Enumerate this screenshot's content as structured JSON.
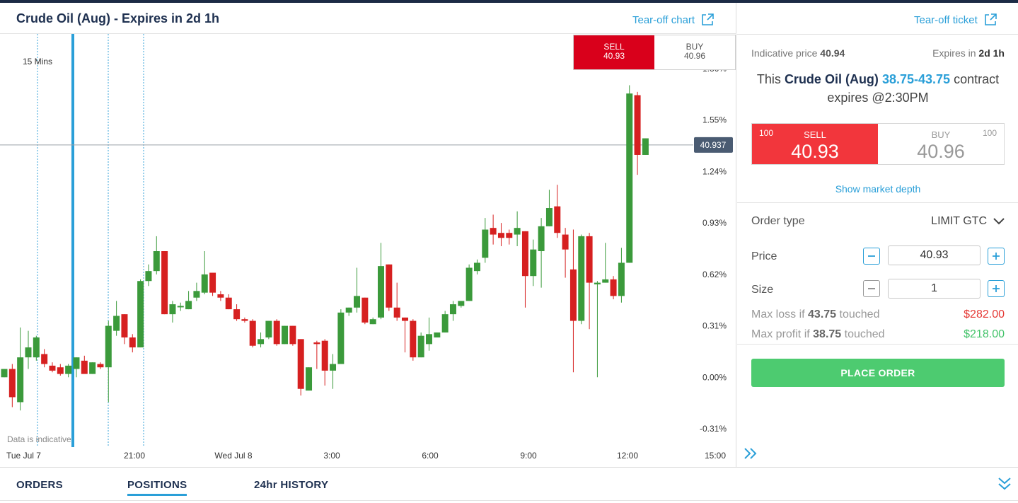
{
  "chart_header": {
    "title": "Crude Oil (Aug) - Expires in 2d 1h",
    "tearoff_chart": "Tear-off chart"
  },
  "mini_ticket": {
    "sell_label": "SELL",
    "sell_price": "40.93",
    "buy_label": "BUY",
    "buy_price": "40.96"
  },
  "chart": {
    "interval": "15 Mins",
    "disclaimer": "Data is indicative",
    "current_price_tag": "40.937"
  },
  "chart_data": {
    "type": "candlestick",
    "y_axis_unit": "%",
    "y_ticks": [
      "1.86%",
      "1.55%",
      "1.24%",
      "0.93%",
      "0.62%",
      "0.31%",
      "0.00%",
      "-0.31%"
    ],
    "y_tick_values": [
      1.86,
      1.55,
      1.24,
      0.93,
      0.62,
      0.31,
      0.0,
      -0.31
    ],
    "x_ticks": [
      "Tue Jul 7",
      "21:00",
      "Wed Jul 8",
      "3:00",
      "6:00",
      "9:00",
      "12:00",
      "15:00"
    ],
    "current_value": 1.4,
    "colors": {
      "up": "#3b9a3b",
      "down": "#d62020"
    },
    "candles": [
      {
        "o": 0.0,
        "h": 0.05,
        "l": 0.0,
        "c": 0.05
      },
      {
        "o": 0.05,
        "h": 0.08,
        "l": -0.18,
        "c": -0.12
      },
      {
        "o": -0.15,
        "h": 0.3,
        "l": -0.2,
        "c": 0.12
      },
      {
        "o": 0.12,
        "h": 0.28,
        "l": 0.05,
        "c": 0.18
      },
      {
        "o": 0.12,
        "h": 0.25,
        "l": 0.1,
        "c": 0.24
      },
      {
        "o": 0.14,
        "h": 0.17,
        "l": 0.06,
        "c": 0.08
      },
      {
        "o": 0.07,
        "h": 0.09,
        "l": 0.03,
        "c": 0.04
      },
      {
        "o": 0.06,
        "h": 0.08,
        "l": 0.01,
        "c": 0.02
      },
      {
        "o": 0.02,
        "h": 0.08,
        "l": 0.0,
        "c": 0.07
      },
      {
        "o": 0.05,
        "h": 0.12,
        "l": 0.0,
        "c": 0.12
      },
      {
        "o": 0.1,
        "h": 0.13,
        "l": 0.03,
        "c": 0.02
      },
      {
        "o": 0.02,
        "h": 0.09,
        "l": 0.02,
        "c": 0.09
      },
      {
        "o": 0.08,
        "h": 0.09,
        "l": 0.05,
        "c": 0.06
      },
      {
        "o": 0.06,
        "h": 0.34,
        "l": -0.15,
        "c": 0.31
      },
      {
        "o": 0.28,
        "h": 0.46,
        "l": 0.25,
        "c": 0.37
      },
      {
        "o": 0.38,
        "h": 0.38,
        "l": 0.2,
        "c": 0.24
      },
      {
        "o": 0.24,
        "h": 0.26,
        "l": 0.15,
        "c": 0.18
      },
      {
        "o": 0.18,
        "h": 0.59,
        "l": 0.18,
        "c": 0.58
      },
      {
        "o": 0.58,
        "h": 0.68,
        "l": 0.55,
        "c": 0.64
      },
      {
        "o": 0.64,
        "h": 0.85,
        "l": 0.62,
        "c": 0.76
      },
      {
        "o": 0.76,
        "h": 0.76,
        "l": 0.38,
        "c": 0.38
      },
      {
        "o": 0.38,
        "h": 0.46,
        "l": 0.33,
        "c": 0.44
      },
      {
        "o": 0.43,
        "h": 0.45,
        "l": 0.4,
        "c": 0.43
      },
      {
        "o": 0.41,
        "h": 0.52,
        "l": 0.41,
        "c": 0.46
      },
      {
        "o": 0.48,
        "h": 0.57,
        "l": 0.46,
        "c": 0.52
      },
      {
        "o": 0.51,
        "h": 0.76,
        "l": 0.5,
        "c": 0.62
      },
      {
        "o": 0.63,
        "h": 0.63,
        "l": 0.49,
        "c": 0.51
      },
      {
        "o": 0.5,
        "h": 0.52,
        "l": 0.46,
        "c": 0.48
      },
      {
        "o": 0.48,
        "h": 0.5,
        "l": 0.41,
        "c": 0.41
      },
      {
        "o": 0.41,
        "h": 0.44,
        "l": 0.34,
        "c": 0.35
      },
      {
        "o": 0.35,
        "h": 0.36,
        "l": 0.33,
        "c": 0.34
      },
      {
        "o": 0.34,
        "h": 0.35,
        "l": 0.18,
        "c": 0.19
      },
      {
        "o": 0.2,
        "h": 0.27,
        "l": 0.18,
        "c": 0.23
      },
      {
        "o": 0.24,
        "h": 0.34,
        "l": 0.23,
        "c": 0.34
      },
      {
        "o": 0.34,
        "h": 0.35,
        "l": 0.19,
        "c": 0.2
      },
      {
        "o": 0.2,
        "h": 0.31,
        "l": 0.2,
        "c": 0.31
      },
      {
        "o": 0.31,
        "h": 0.31,
        "l": 0.19,
        "c": 0.2
      },
      {
        "o": 0.23,
        "h": 0.23,
        "l": -0.11,
        "c": -0.07
      },
      {
        "o": -0.08,
        "h": 0.06,
        "l": -0.08,
        "c": 0.06
      },
      {
        "o": 0.21,
        "h": 0.22,
        "l": 0.05,
        "c": 0.2
      },
      {
        "o": 0.22,
        "h": 0.23,
        "l": -0.05,
        "c": 0.04
      },
      {
        "o": 0.04,
        "h": 0.14,
        "l": -0.07,
        "c": 0.08
      },
      {
        "o": 0.08,
        "h": 0.41,
        "l": 0.08,
        "c": 0.39
      },
      {
        "o": 0.39,
        "h": 0.42,
        "l": 0.37,
        "c": 0.42
      },
      {
        "o": 0.42,
        "h": 0.66,
        "l": 0.39,
        "c": 0.49
      },
      {
        "o": 0.48,
        "h": 0.48,
        "l": 0.32,
        "c": 0.33
      },
      {
        "o": 0.32,
        "h": 0.36,
        "l": 0.32,
        "c": 0.35
      },
      {
        "o": 0.36,
        "h": 0.81,
        "l": 0.35,
        "c": 0.67
      },
      {
        "o": 0.68,
        "h": 0.68,
        "l": 0.4,
        "c": 0.42
      },
      {
        "o": 0.42,
        "h": 0.57,
        "l": 0.34,
        "c": 0.36
      },
      {
        "o": 0.36,
        "h": 0.36,
        "l": 0.15,
        "c": 0.34
      },
      {
        "o": 0.34,
        "h": 0.35,
        "l": 0.1,
        "c": 0.12
      },
      {
        "o": 0.12,
        "h": 0.27,
        "l": 0.12,
        "c": 0.25
      },
      {
        "o": 0.2,
        "h": 0.36,
        "l": 0.16,
        "c": 0.26
      },
      {
        "o": 0.24,
        "h": 0.27,
        "l": 0.24,
        "c": 0.27
      },
      {
        "o": 0.27,
        "h": 0.4,
        "l": 0.27,
        "c": 0.38
      },
      {
        "o": 0.38,
        "h": 0.46,
        "l": 0.34,
        "c": 0.44
      },
      {
        "o": 0.43,
        "h": 0.46,
        "l": 0.42,
        "c": 0.46
      },
      {
        "o": 0.46,
        "h": 0.68,
        "l": 0.46,
        "c": 0.66
      },
      {
        "o": 0.64,
        "h": 0.71,
        "l": 0.62,
        "c": 0.69
      },
      {
        "o": 0.72,
        "h": 0.96,
        "l": 0.69,
        "c": 0.89
      },
      {
        "o": 0.9,
        "h": 0.98,
        "l": 0.8,
        "c": 0.86
      },
      {
        "o": 0.87,
        "h": 0.93,
        "l": 0.79,
        "c": 0.84
      },
      {
        "o": 0.87,
        "h": 0.89,
        "l": 0.8,
        "c": 0.84
      },
      {
        "o": 0.86,
        "h": 1.0,
        "l": 0.79,
        "c": 0.9
      },
      {
        "o": 0.88,
        "h": 0.88,
        "l": 0.42,
        "c": 0.61
      },
      {
        "o": 0.61,
        "h": 0.83,
        "l": 0.55,
        "c": 0.77
      },
      {
        "o": 0.76,
        "h": 0.96,
        "l": 0.54,
        "c": 0.91
      },
      {
        "o": 0.91,
        "h": 1.13,
        "l": 0.91,
        "c": 1.02
      },
      {
        "o": 1.03,
        "h": 1.16,
        "l": 0.84,
        "c": 0.87
      },
      {
        "o": 0.86,
        "h": 0.9,
        "l": 0.6,
        "c": 0.77
      },
      {
        "o": 0.65,
        "h": 0.89,
        "l": 0.03,
        "c": 0.34
      },
      {
        "o": 0.34,
        "h": 0.86,
        "l": 0.32,
        "c": 0.85
      },
      {
        "o": 0.85,
        "h": 0.87,
        "l": 0.29,
        "c": 0.57
      },
      {
        "o": 0.56,
        "h": 0.58,
        "l": 0.0,
        "c": 0.57
      },
      {
        "o": 0.57,
        "h": 0.81,
        "l": 0.57,
        "c": 0.59
      },
      {
        "o": 0.59,
        "h": 0.61,
        "l": 0.47,
        "c": 0.49
      },
      {
        "o": 0.49,
        "h": 0.78,
        "l": 0.45,
        "c": 0.69
      },
      {
        "o": 0.69,
        "h": 1.76,
        "l": 0.69,
        "c": 1.71
      },
      {
        "o": 1.7,
        "h": 1.72,
        "l": 1.22,
        "c": 1.34
      },
      {
        "o": 1.34,
        "h": 1.44,
        "l": 1.34,
        "c": 1.44
      }
    ]
  },
  "ticket": {
    "tearoff_ticket": "Tear-off ticket",
    "indicative_label": "Indicative price",
    "indicative_value": "40.94",
    "expires_label": "Expires in",
    "expires_value": "2d 1h",
    "contract_prefix": "This",
    "contract_name": "Crude Oil (Aug)",
    "contract_range": "38.75-43.75",
    "contract_suffix": "contract",
    "contract_expiry": "expires @2:30PM",
    "sell": {
      "qty": "100",
      "label": "SELL",
      "price": "40.93"
    },
    "buy": {
      "qty": "100",
      "label": "BUY",
      "price": "40.96"
    },
    "market_depth": "Show market depth",
    "order_type_label": "Order type",
    "order_type_value": "LIMIT GTC",
    "price_label": "Price",
    "price_value": "40.93",
    "size_label": "Size",
    "size_value": "1",
    "max_loss_prefix": "Max loss if",
    "max_loss_level": "43.75",
    "max_loss_suffix": "touched",
    "max_loss_value": "$282.00",
    "max_profit_prefix": "Max profit if",
    "max_profit_level": "38.75",
    "max_profit_suffix": "touched",
    "max_profit_value": "$218.00",
    "place_order": "PLACE ORDER"
  },
  "bottom_tabs": [
    {
      "label": "ORDERS"
    },
    {
      "label": "POSITIONS"
    },
    {
      "label": "24hr HISTORY"
    }
  ],
  "colors": {
    "accent": "#2a9fd8",
    "sell": "#f2363c",
    "mini_sell": "#d9001b",
    "place_order": "#4dcb70",
    "loss": "#e53935",
    "profit": "#43c36a"
  }
}
